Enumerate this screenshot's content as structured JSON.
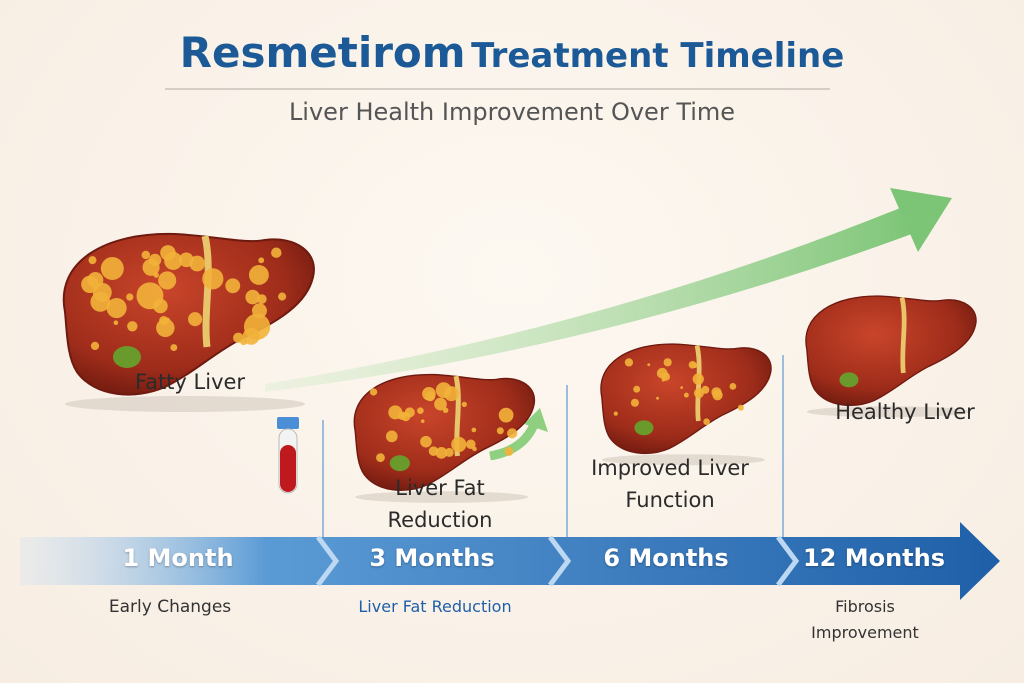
{
  "header": {
    "title_lead": "Resmetirom",
    "title_rest": "Treatment Timeline",
    "subtitle": "Liver Health Improvement Over Time"
  },
  "livers": [
    {
      "label": "Fatty Liver"
    },
    {
      "label": "Liver Fat Reduction"
    },
    {
      "label": "Improved Liver Function"
    },
    {
      "label": "Healthy Liver"
    }
  ],
  "timeline": [
    {
      "label": "1 Month",
      "caption": "Early Changes"
    },
    {
      "label": "3 Months",
      "caption": "Liver Fat Reduction"
    },
    {
      "label": "6 Months"
    },
    {
      "label": "12 Months",
      "caption": "Fibrosis Improvement"
    }
  ]
}
